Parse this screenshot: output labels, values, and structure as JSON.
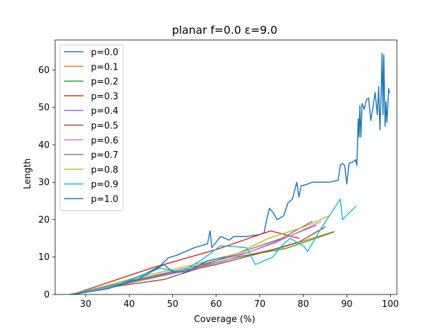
{
  "chart_data": {
    "type": "line",
    "title": "planar f=0.0 ε=9.0",
    "xlabel": "Coverage (%)",
    "ylabel": "Length",
    "xlim": [
      23,
      101.5
    ],
    "ylim": [
      0,
      68
    ],
    "xticks": [
      30,
      40,
      50,
      60,
      70,
      80,
      90,
      100
    ],
    "yticks": [
      0,
      10,
      20,
      30,
      40,
      50,
      60
    ],
    "grid": false,
    "legend_position": "upper-left",
    "series": [
      {
        "name": "p=0.0",
        "color": "#1f77b4",
        "points": [
          [
            26.5,
            0
          ],
          [
            30,
            0.8
          ],
          [
            33,
            1.5
          ],
          [
            38,
            3
          ],
          [
            42,
            4.5
          ],
          [
            47,
            7.5
          ],
          [
            49,
            9.8
          ],
          [
            51,
            10.5
          ],
          [
            53,
            11.5
          ],
          [
            55,
            12.5
          ],
          [
            58,
            13.5
          ],
          [
            58.6,
            17
          ],
          [
            59,
            12.5
          ],
          [
            61,
            15.5
          ],
          [
            63,
            14.5
          ],
          [
            64,
            15.5
          ],
          [
            65,
            15.5
          ],
          [
            67,
            15.5
          ],
          [
            70,
            16
          ],
          [
            71,
            16.5
          ],
          [
            71.5,
            19.5
          ],
          [
            72.2,
            23
          ],
          [
            73,
            22
          ],
          [
            74,
            20
          ],
          [
            75.5,
            21
          ],
          [
            76.5,
            24.5
          ],
          [
            77.5,
            25.5
          ],
          [
            78.5,
            30
          ],
          [
            79,
            26
          ],
          [
            79.5,
            29
          ],
          [
            81,
            29.5
          ],
          [
            82,
            30
          ],
          [
            83,
            30
          ],
          [
            85,
            30
          ],
          [
            86,
            30
          ],
          [
            88,
            30.5
          ],
          [
            88.5,
            34.5
          ],
          [
            89,
            35
          ],
          [
            89.5,
            34.5
          ],
          [
            90,
            29.5
          ],
          [
            90.5,
            35
          ],
          [
            91.5,
            35.5
          ],
          [
            92,
            36
          ],
          [
            92.3,
            34.5
          ],
          [
            92.6,
            47
          ],
          [
            92.8,
            42
          ],
          [
            93,
            50.5
          ],
          [
            93.2,
            42
          ],
          [
            93.5,
            51
          ],
          [
            94,
            49.5
          ],
          [
            94.5,
            52
          ],
          [
            95,
            52.5
          ],
          [
            95.5,
            46.5
          ],
          [
            96,
            50
          ],
          [
            96.5,
            54
          ],
          [
            97,
            48
          ],
          [
            97.3,
            55.5
          ],
          [
            97.6,
            44
          ],
          [
            97.9,
            55
          ],
          [
            98.1,
            64.5
          ],
          [
            98.3,
            48
          ],
          [
            98.5,
            64
          ],
          [
            98.8,
            45
          ],
          [
            99,
            51.5
          ],
          [
            99.2,
            46
          ],
          [
            99.4,
            50
          ],
          [
            99.6,
            55
          ],
          [
            99.8,
            54
          ]
        ]
      },
      {
        "name": "p=0.1",
        "color": "#ff7f0e",
        "points": [
          [
            27,
            0
          ],
          [
            35,
            2
          ],
          [
            45,
            4.5
          ],
          [
            55,
            7
          ],
          [
            65,
            10
          ],
          [
            75,
            12.5
          ],
          [
            87,
            16.8
          ]
        ]
      },
      {
        "name": "p=0.2",
        "color": "#2ca02c",
        "points": [
          [
            27,
            0
          ],
          [
            35,
            2
          ],
          [
            45,
            4.5
          ],
          [
            55,
            7
          ],
          [
            65,
            10
          ],
          [
            76,
            12.3
          ],
          [
            87,
            16.7
          ]
        ]
      },
      {
        "name": "p=0.3",
        "color": "#d62728",
        "points": [
          [
            27,
            0
          ],
          [
            45,
            7
          ],
          [
            60,
            12
          ],
          [
            72.5,
            17
          ],
          [
            79,
            15
          ]
        ]
      },
      {
        "name": "p=0.4",
        "color": "#9467bd",
        "points": [
          [
            27,
            0
          ],
          [
            40,
            3.5
          ],
          [
            55,
            7.5
          ],
          [
            68,
            11.5
          ],
          [
            83,
            18.5
          ]
        ]
      },
      {
        "name": "p=0.5",
        "color": "#8c564b",
        "points": [
          [
            27,
            0
          ],
          [
            36,
            2
          ],
          [
            48,
            4
          ],
          [
            56,
            7
          ],
          [
            60,
            8
          ],
          [
            70,
            11
          ],
          [
            79,
            14
          ],
          [
            85,
            18
          ]
        ]
      },
      {
        "name": "p=0.6",
        "color": "#e377c2",
        "points": [
          [
            27,
            0
          ],
          [
            40,
            3
          ],
          [
            52,
            6
          ],
          [
            62,
            9
          ],
          [
            74,
            14
          ],
          [
            84,
            19.5
          ]
        ]
      },
      {
        "name": "p=0.7",
        "color": "#7f7f7f",
        "points": [
          [
            27,
            0
          ],
          [
            40,
            3.5
          ],
          [
            55,
            7
          ],
          [
            65,
            11
          ],
          [
            75,
            15
          ],
          [
            82,
            19.5
          ]
        ]
      },
      {
        "name": "p=0.8",
        "color": "#bcbd22",
        "points": [
          [
            27,
            0
          ],
          [
            40,
            4
          ],
          [
            55,
            8
          ],
          [
            65,
            11
          ],
          [
            72,
            15
          ],
          [
            80,
            18
          ],
          [
            86,
            21
          ]
        ]
      },
      {
        "name": "p=0.9",
        "color": "#17becf",
        "points": [
          [
            27,
            0
          ],
          [
            38,
            3
          ],
          [
            47,
            7
          ],
          [
            52,
            6
          ],
          [
            57,
            9.5
          ],
          [
            61,
            13
          ],
          [
            64,
            12.8
          ],
          [
            67,
            12.5
          ],
          [
            69,
            8
          ],
          [
            71,
            9
          ],
          [
            73,
            10
          ],
          [
            75,
            13
          ],
          [
            77,
            15
          ],
          [
            80,
            13
          ],
          [
            81,
            11.5
          ],
          [
            84,
            17.5
          ],
          [
            88.5,
            25.5
          ],
          [
            89,
            20
          ],
          [
            92,
            23.5
          ]
        ]
      },
      {
        "name": "p=1.0",
        "color": "#1f77b4",
        "points": [
          [
            27,
            0
          ],
          [
            35,
            1.5
          ],
          [
            42,
            4
          ],
          [
            48,
            8
          ],
          [
            50,
            6
          ],
          [
            53,
            6
          ],
          [
            58,
            9
          ],
          [
            62,
            10
          ]
        ]
      }
    ]
  }
}
